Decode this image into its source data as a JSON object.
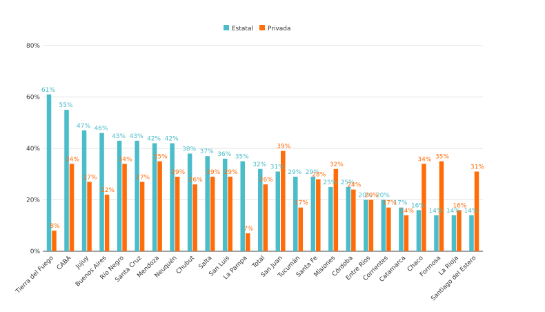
{
  "chart_data": {
    "type": "bar",
    "title": "",
    "xlabel": "",
    "ylabel": "",
    "ylim": [
      0,
      80
    ],
    "y_ticks": [
      "0%",
      "20%",
      "40%",
      "60%",
      "80%"
    ],
    "grid": true,
    "legend_position": "top-center",
    "categories": [
      "Tierra del Fuego",
      "CABA",
      "Jujuy",
      "Buenos Aires",
      "Río Negro",
      "Santa Cruz",
      "Mendoza",
      "Neuquén",
      "Chubut",
      "Salta",
      "San Luis",
      "La Pampa",
      "Total",
      "San Juan",
      "Tucumán",
      "Santa Fe",
      "Misiones",
      "Córdoba",
      "Entre Ríos",
      "Corrientes",
      "Catamarca",
      "Chaco",
      "Formosa",
      "La Rioja",
      "Santiago del Estero"
    ],
    "series": [
      {
        "name": "Estatal",
        "color": "#4bbcc9",
        "values": [
          61,
          55,
          47,
          46,
          43,
          43,
          42,
          42,
          38,
          37,
          36,
          35,
          32,
          31,
          29,
          29,
          25,
          25,
          20,
          20,
          17,
          16,
          14,
          14,
          14
        ],
        "labels": [
          "61%",
          "55%",
          "47%",
          "46%",
          "43%",
          "43%",
          "42%",
          "42%",
          "38%",
          "37%",
          "36%",
          "35%",
          "32%",
          "31%",
          "29%",
          "29%",
          "25%",
          "25%",
          "20%",
          "20%",
          "17%",
          "16%",
          "14%",
          "14%",
          "14%"
        ]
      },
      {
        "name": "Privada",
        "color": "#ff6d0a",
        "values": [
          8,
          34,
          27,
          22,
          34,
          27,
          35,
          29,
          26,
          29,
          29,
          7,
          26,
          39,
          17,
          28,
          32,
          24,
          20,
          17,
          14,
          34,
          35,
          16,
          31
        ],
        "labels": [
          "8%",
          "34%",
          "27%",
          "22%",
          "34%",
          "27%",
          "35%",
          "29%",
          "26%",
          "29%",
          "29%",
          "7%",
          "26%",
          "39%",
          "17%",
          "28%",
          "32%",
          "24%",
          "20%",
          "17%",
          "14%",
          "34%",
          "35%",
          "16%",
          "31%"
        ]
      }
    ]
  }
}
